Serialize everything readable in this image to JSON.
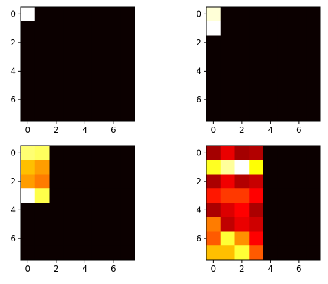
{
  "chart_data": [
    {
      "type": "heatmap",
      "colormap": "hot",
      "rows": 8,
      "cols": 8,
      "xticks": [
        "0",
        "2",
        "4",
        "6"
      ],
      "yticks": [
        "0",
        "2",
        "4",
        "6"
      ],
      "vmin": 0,
      "vmax": 1,
      "values": [
        [
          1,
          0,
          0,
          0,
          0,
          0,
          0,
          0
        ],
        [
          0,
          0,
          0,
          0,
          0,
          0,
          0,
          0
        ],
        [
          0,
          0,
          0,
          0,
          0,
          0,
          0,
          0
        ],
        [
          0,
          0,
          0,
          0,
          0,
          0,
          0,
          0
        ],
        [
          0,
          0,
          0,
          0,
          0,
          0,
          0,
          0
        ],
        [
          0,
          0,
          0,
          0,
          0,
          0,
          0,
          0
        ],
        [
          0,
          0,
          0,
          0,
          0,
          0,
          0,
          0
        ],
        [
          0,
          0,
          0,
          0,
          0,
          0,
          0,
          0
        ]
      ]
    },
    {
      "type": "heatmap",
      "colormap": "hot",
      "rows": 8,
      "cols": 8,
      "xticks": [
        "0",
        "2",
        "4",
        "6"
      ],
      "yticks": [
        "0",
        "2",
        "4",
        "6"
      ],
      "vmin": 0,
      "vmax": 1,
      "values": [
        [
          0.96,
          0,
          0,
          0,
          0,
          0,
          0,
          0
        ],
        [
          1,
          0,
          0,
          0,
          0,
          0,
          0,
          0
        ],
        [
          0,
          0,
          0,
          0,
          0,
          0,
          0,
          0
        ],
        [
          0,
          0,
          0,
          0,
          0,
          0,
          0,
          0
        ],
        [
          0,
          0,
          0,
          0,
          0,
          0,
          0,
          0
        ],
        [
          0,
          0,
          0,
          0,
          0,
          0,
          0,
          0
        ],
        [
          0,
          0,
          0,
          0,
          0,
          0,
          0,
          0
        ],
        [
          0,
          0,
          0,
          0,
          0,
          0,
          0,
          0
        ]
      ]
    },
    {
      "type": "heatmap",
      "colormap": "hot",
      "rows": 8,
      "cols": 8,
      "xticks": [
        "0",
        "2",
        "4",
        "6"
      ],
      "yticks": [
        "0",
        "2",
        "4",
        "6"
      ],
      "vmin": 0,
      "vmax": 1,
      "values": [
        [
          0.86,
          0.84,
          0,
          0,
          0,
          0,
          0,
          0
        ],
        [
          0.65,
          0.6,
          0,
          0,
          0,
          0,
          0,
          0
        ],
        [
          0.6,
          0.55,
          0,
          0,
          0,
          0,
          0,
          0
        ],
        [
          1,
          0.82,
          0,
          0,
          0,
          0,
          0,
          0
        ],
        [
          0,
          0,
          0,
          0,
          0,
          0,
          0,
          0
        ],
        [
          0,
          0,
          0,
          0,
          0,
          0,
          0,
          0
        ],
        [
          0,
          0,
          0,
          0,
          0,
          0,
          0,
          0
        ],
        [
          0,
          0,
          0,
          0,
          0,
          0,
          0,
          0
        ]
      ]
    },
    {
      "type": "heatmap",
      "colormap": "hot",
      "rows": 8,
      "cols": 8,
      "xticks": [
        "0",
        "2",
        "4",
        "6"
      ],
      "yticks": [
        "0",
        "2",
        "4",
        "6"
      ],
      "vmin": 0,
      "vmax": 1,
      "values": [
        [
          0.22,
          0.32,
          0.22,
          0.24,
          0,
          0,
          0,
          0
        ],
        [
          0.78,
          0.9,
          1,
          0.75,
          0,
          0,
          0,
          0
        ],
        [
          0.23,
          0.33,
          0.24,
          0.27,
          0,
          0,
          0,
          0
        ],
        [
          0.4,
          0.45,
          0.45,
          0.35,
          0,
          0,
          0,
          0
        ],
        [
          0.23,
          0.3,
          0.35,
          0.23,
          0,
          0,
          0,
          0
        ],
        [
          0.55,
          0.26,
          0.32,
          0.28,
          0,
          0,
          0,
          0
        ],
        [
          0.5,
          0.8,
          0.58,
          0.35,
          0,
          0,
          0,
          0
        ],
        [
          0.65,
          0.65,
          0.8,
          0.5,
          0,
          0,
          0,
          0
        ]
      ]
    }
  ]
}
